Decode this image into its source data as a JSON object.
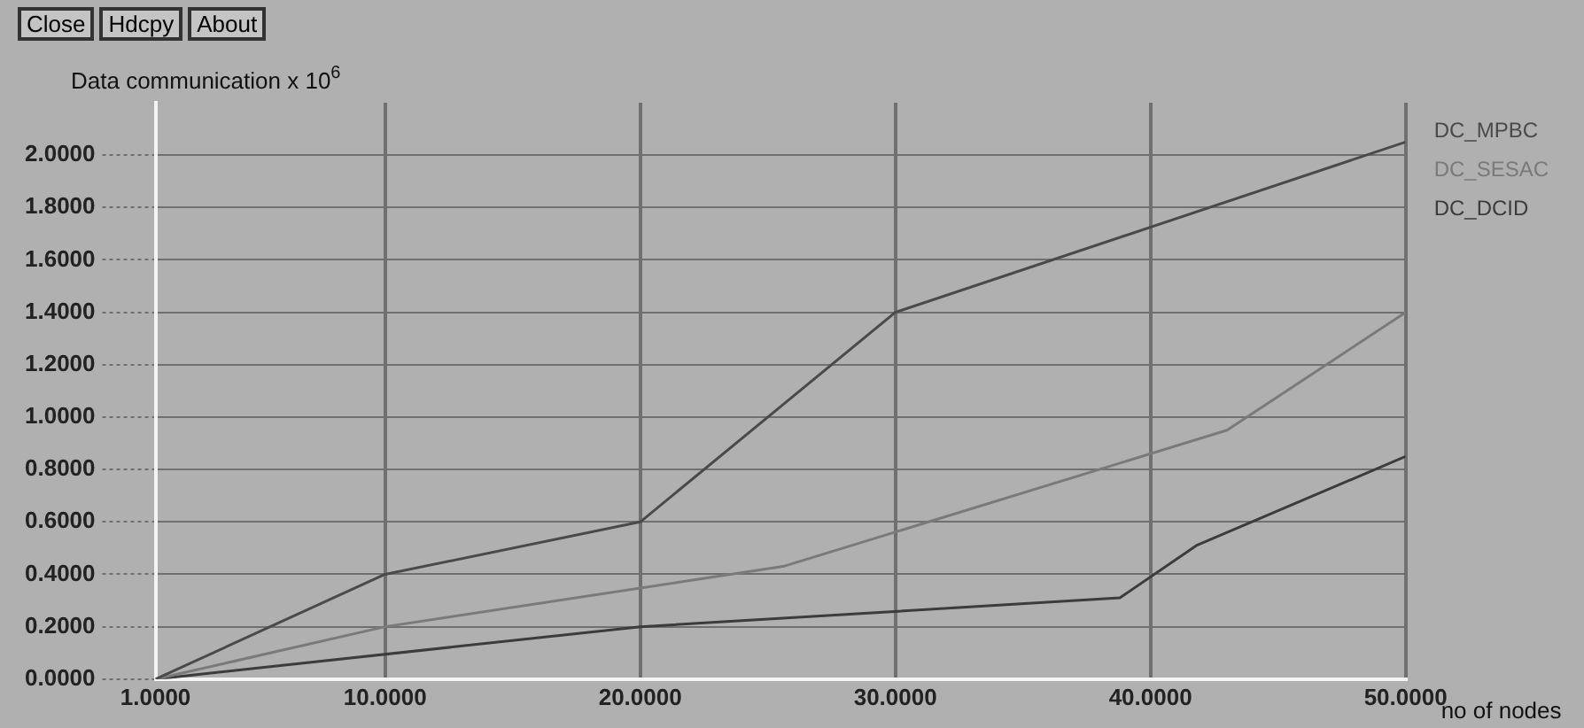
{
  "chart_data": {
    "type": "line",
    "xlabel": "no of nodes",
    "ylabel": "Data communication x 10$^{6}$",
    "annotations": [
      "Close",
      "Hdcpy",
      "About"
    ],
    "xlim": [
      1,
      50
    ],
    "ylim": [
      0,
      2.2
    ],
    "xticks": [
      {
        "value": 1,
        "label": "1.0000"
      },
      {
        "value": 10,
        "label": "10.0000"
      },
      {
        "value": 20,
        "label": "20.0000"
      },
      {
        "value": 30,
        "label": "30.0000"
      },
      {
        "value": 40,
        "label": "40.0000"
      },
      {
        "value": 50,
        "label": "50.0000"
      }
    ],
    "yticks": [
      {
        "value": 0,
        "label": "0.0000"
      },
      {
        "value": 0.2,
        "label": "0.2000"
      },
      {
        "value": 0.4,
        "label": "0.4000"
      },
      {
        "value": 0.6,
        "label": "0.6000"
      },
      {
        "value": 0.8,
        "label": "0.8000"
      },
      {
        "value": 1,
        "label": "1.0000"
      },
      {
        "value": 1.2,
        "label": "1.2000"
      },
      {
        "value": 1.4,
        "label": "1.4000"
      },
      {
        "value": 1.6,
        "label": "1.6000"
      },
      {
        "value": 1.8,
        "label": "1.8000"
      },
      {
        "value": 2,
        "label": "2.0000"
      }
    ],
    "grid": true,
    "legend": "top right",
    "marker": "none",
    "line_style": "solid",
    "series": [
      {
        "name": "DC_MPBC",
        "color": "#4a4a4a",
        "x": [
          1,
          10,
          20,
          30,
          50
        ],
        "values": [
          0,
          0.4,
          0.6,
          1.4,
          2.05
        ]
      },
      {
        "name": "DC_SESAC",
        "color": "#7a7a7a",
        "x": [
          1,
          10,
          25.6,
          43,
          50
        ],
        "values": [
          0,
          0.2,
          0.43,
          0.95,
          1.4
        ]
      },
      {
        "name": "DC_DCID",
        "color": "#3c3c3c",
        "x": [
          1,
          20,
          38.8,
          41.8,
          50
        ],
        "values": [
          0,
          0.2,
          0.31,
          0.51,
          0.85
        ]
      }
    ]
  }
}
